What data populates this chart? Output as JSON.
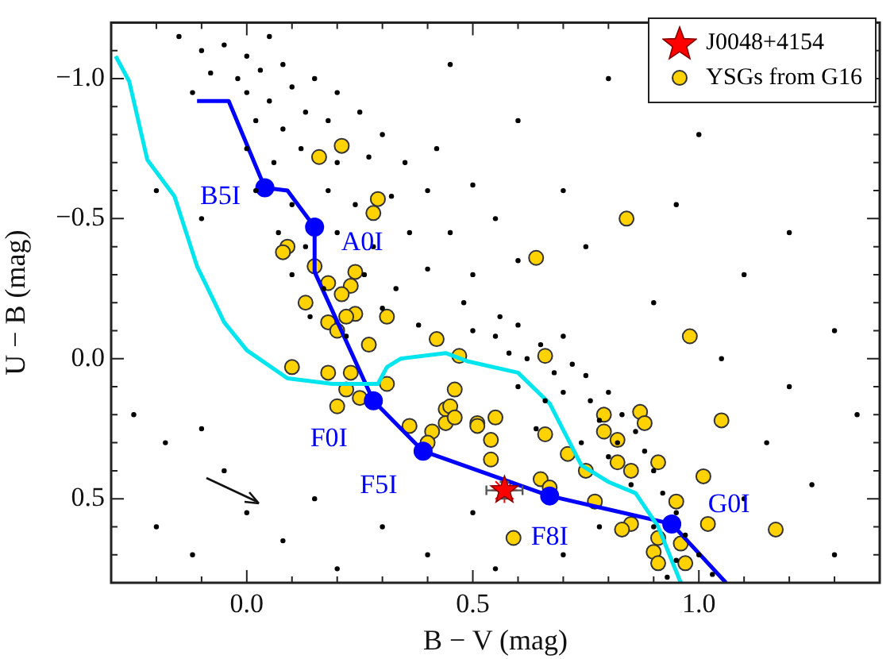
{
  "chart_data": {
    "type": "scatter",
    "xlabel": "B − V (mag)",
    "ylabel": "U − B (mag)",
    "xlim": [
      -0.3,
      1.4
    ],
    "ylim": [
      0.8,
      -1.2
    ],
    "xticks": [
      {
        "value": -0.2,
        "label": null
      },
      {
        "value": -0.1,
        "label": null
      },
      {
        "value": 0,
        "label": "0.0"
      },
      {
        "value": 0.1,
        "label": null
      },
      {
        "value": 0.2,
        "label": null
      },
      {
        "value": 0.3,
        "label": null
      },
      {
        "value": 0.4,
        "label": null
      },
      {
        "value": 0.5,
        "label": "0.5"
      },
      {
        "value": 0.6,
        "label": null
      },
      {
        "value": 0.7,
        "label": null
      },
      {
        "value": 0.8,
        "label": null
      },
      {
        "value": 0.9,
        "label": null
      },
      {
        "value": 1.0,
        "label": "1.0"
      },
      {
        "value": 1.1,
        "label": null
      },
      {
        "value": 1.2,
        "label": null
      },
      {
        "value": 1.3,
        "label": null
      }
    ],
    "yticks": [
      {
        "value": -1.1,
        "label": null
      },
      {
        "value": -1.0,
        "label": "−1.0"
      },
      {
        "value": -0.9,
        "label": null
      },
      {
        "value": -0.8,
        "label": null
      },
      {
        "value": -0.7,
        "label": null
      },
      {
        "value": -0.6,
        "label": null
      },
      {
        "value": -0.5,
        "label": "−0.5"
      },
      {
        "value": -0.4,
        "label": null
      },
      {
        "value": -0.3,
        "label": null
      },
      {
        "value": -0.2,
        "label": null
      },
      {
        "value": -0.1,
        "label": null
      },
      {
        "value": 0,
        "label": "0.0"
      },
      {
        "value": 0.1,
        "label": null
      },
      {
        "value": 0.2,
        "label": null
      },
      {
        "value": 0.3,
        "label": null
      },
      {
        "value": 0.4,
        "label": null
      },
      {
        "value": 0.5,
        "label": "0.5"
      },
      {
        "value": 0.6,
        "label": null
      },
      {
        "value": 0.7,
        "label": null
      }
    ],
    "legend": "top right",
    "annotations": [
      {
        "text": "B5I",
        "x": 0.04,
        "y": -0.61
      },
      {
        "text": "A0I",
        "x": 0.15,
        "y": -0.47
      },
      {
        "text": "F0I",
        "x": 0.28,
        "y": 0.15
      },
      {
        "text": "F5I",
        "x": 0.39,
        "y": 0.33
      },
      {
        "text": "F8I",
        "x": 0.67,
        "y": 0.49
      },
      {
        "text": "G0I",
        "x": 0.94,
        "y": 0.59
      }
    ],
    "series": [
      {
        "type": "scatter",
        "color": "#000000",
        "marker": "circle",
        "x": [
          -0.15,
          -0.1,
          -0.05,
          0.0,
          0.05,
          -0.08,
          -0.02,
          0.03,
          0.08,
          -0.12,
          0.0,
          0.05,
          0.1,
          0.15,
          0.2,
          0.02,
          0.08,
          0.13,
          0.18,
          0.25,
          0.3,
          0.0,
          0.06,
          0.12,
          0.2,
          0.27,
          0.35,
          0.42,
          0.02,
          0.1,
          0.18,
          0.24,
          0.32,
          0.4,
          0.5,
          0.07,
          0.13,
          0.2,
          0.28,
          0.36,
          0.45,
          0.55,
          0.1,
          0.17,
          0.26,
          0.33,
          0.4,
          0.5,
          0.6,
          0.14,
          0.22,
          0.3,
          0.38,
          0.48,
          0.56,
          0.5,
          0.55,
          0.6,
          0.58,
          0.62,
          0.65,
          0.7,
          0.68,
          0.72,
          0.75,
          0.7,
          0.76,
          0.8,
          0.78,
          0.83,
          0.86,
          0.82,
          0.88,
          0.9,
          0.85,
          0.92,
          0.95,
          0.9,
          0.97,
          1.0,
          0.95,
          1.03,
          0.93,
          0.8,
          0.74,
          0.66,
          0.6,
          0.64,
          -0.25,
          -0.18,
          -0.1,
          -0.05,
          -0.2,
          -0.12,
          0.0,
          0.08,
          0.15,
          0.2,
          0.3,
          0.4,
          0.5,
          0.55,
          0.7,
          0.78,
          1.1,
          1.15,
          1.2,
          1.25,
          1.3,
          1.35,
          1.05,
          0.9,
          0.75,
          0.7,
          0.95,
          1.1,
          1.2,
          1.3,
          0.6,
          0.8,
          1.0,
          0.45,
          -0.2,
          -0.1
        ],
        "values": [
          -1.15,
          -1.1,
          -1.12,
          -1.08,
          -1.15,
          -1.02,
          -1.0,
          -1.03,
          -1.05,
          -0.95,
          -0.95,
          -0.92,
          -0.97,
          -1.0,
          -0.95,
          -0.85,
          -0.82,
          -0.88,
          -0.85,
          -0.88,
          -0.8,
          -0.75,
          -0.7,
          -0.75,
          -0.7,
          -0.72,
          -0.7,
          -0.75,
          -0.6,
          -0.55,
          -0.6,
          -0.55,
          -0.58,
          -0.6,
          -0.62,
          -0.45,
          -0.4,
          -0.45,
          -0.4,
          -0.45,
          -0.45,
          -0.5,
          -0.3,
          -0.25,
          -0.3,
          -0.25,
          -0.32,
          -0.3,
          -0.35,
          -0.15,
          -0.08,
          -0.18,
          -0.12,
          -0.2,
          -0.15,
          -0.1,
          -0.08,
          -0.12,
          -0.02,
          0.0,
          -0.05,
          -0.08,
          0.05,
          0.02,
          0.06,
          0.12,
          0.15,
          0.12,
          0.22,
          0.2,
          0.26,
          0.3,
          0.33,
          0.4,
          0.45,
          0.48,
          0.55,
          0.6,
          0.63,
          0.7,
          0.72,
          0.77,
          0.78,
          0.35,
          0.3,
          0.15,
          0.1,
          0.25,
          0.2,
          0.3,
          0.25,
          0.4,
          0.6,
          0.7,
          0.55,
          0.65,
          0.5,
          0.75,
          0.6,
          0.7,
          0.55,
          0.75,
          0.7,
          0.6,
          0.5,
          0.3,
          0.1,
          0.45,
          0.7,
          0.2,
          0.0,
          -0.2,
          -0.4,
          -0.6,
          -0.55,
          -0.3,
          -0.45,
          -0.1,
          -0.85,
          -1.0,
          -0.8,
          -1.05,
          -0.6,
          -0.5
        ]
      },
      {
        "type": "line",
        "color": "#00e5ee",
        "marker": "none",
        "x": [
          -0.29,
          -0.26,
          -0.22,
          -0.16,
          -0.11,
          -0.05,
          0.0,
          0.09,
          0.19,
          0.29,
          0.31,
          0.34,
          0.44,
          0.49,
          0.6,
          0.67,
          0.74,
          0.8,
          0.86,
          0.91,
          0.96
        ],
        "values": [
          -1.08,
          -0.99,
          -0.71,
          -0.58,
          -0.33,
          -0.13,
          -0.03,
          0.07,
          0.09,
          0.09,
          0.03,
          0.0,
          -0.02,
          0.01,
          0.05,
          0.16,
          0.38,
          0.44,
          0.48,
          0.6,
          0.8
        ]
      },
      {
        "type": "line",
        "color": "#0000ff",
        "marker": "none",
        "x": [
          -0.11,
          -0.04,
          0.04,
          0.09,
          0.15,
          0.15,
          0.28,
          0.39,
          0.67,
          0.94,
          1.06
        ],
        "values": [
          -0.92,
          -0.92,
          -0.61,
          -0.6,
          -0.47,
          -0.31,
          0.15,
          0.33,
          0.49,
          0.59,
          0.8
        ]
      },
      {
        "type": "scatter",
        "color": "#0000ff",
        "marker": "circle",
        "x": [
          0.04,
          0.15,
          0.28,
          0.39,
          0.67,
          0.94
        ],
        "values": [
          -0.61,
          -0.47,
          0.15,
          0.33,
          0.49,
          0.59
        ]
      },
      {
        "type": "scatter",
        "name": "YSGs from G16",
        "color": "#ffd200",
        "marker": "circle",
        "x": [
          0.21,
          0.16,
          0.29,
          0.28,
          0.09,
          0.08,
          0.15,
          0.24,
          0.18,
          0.23,
          0.21,
          0.13,
          0.24,
          0.22,
          0.31,
          0.18,
          0.2,
          0.27,
          0.42,
          0.47,
          0.84,
          0.64,
          0.98,
          0.66,
          0.1,
          0.18,
          0.23,
          0.22,
          0.25,
          0.2,
          0.31,
          0.36,
          0.41,
          0.4,
          0.46,
          0.44,
          0.45,
          0.44,
          0.46,
          0.51,
          0.51,
          0.55,
          0.54,
          0.54,
          0.66,
          0.65,
          0.67,
          0.59,
          0.71,
          0.75,
          0.77,
          0.79,
          0.79,
          0.82,
          0.82,
          0.85,
          0.87,
          0.88,
          0.91,
          0.95,
          0.85,
          0.83,
          0.91,
          0.9,
          0.96,
          0.97,
          0.91,
          1.05,
          1.01,
          1.02,
          1.17
        ],
        "values": [
          -0.76,
          -0.72,
          -0.57,
          -0.52,
          -0.4,
          -0.38,
          -0.33,
          -0.31,
          -0.27,
          -0.26,
          -0.23,
          -0.2,
          -0.16,
          -0.15,
          -0.15,
          -0.13,
          -0.1,
          -0.05,
          -0.07,
          -0.01,
          -0.5,
          -0.36,
          -0.08,
          -0.01,
          0.03,
          0.05,
          0.05,
          0.11,
          0.14,
          0.17,
          0.09,
          0.24,
          0.26,
          0.3,
          0.11,
          0.18,
          0.17,
          0.23,
          0.21,
          0.23,
          0.24,
          0.21,
          0.29,
          0.36,
          0.27,
          0.43,
          0.46,
          0.64,
          0.34,
          0.4,
          0.51,
          0.2,
          0.26,
          0.29,
          0.37,
          0.4,
          0.19,
          0.23,
          0.37,
          0.51,
          0.59,
          0.61,
          0.64,
          0.69,
          0.66,
          0.73,
          0.73,
          0.22,
          0.42,
          0.59,
          0.61
        ]
      },
      {
        "type": "scatter",
        "name": "J0048+4154",
        "color": "#ff0000",
        "marker": "star",
        "x": [
          0.57
        ],
        "values": [
          0.47
        ],
        "errors": [
          0.03
        ],
        "xerrors": [
          0.04
        ]
      }
    ]
  }
}
